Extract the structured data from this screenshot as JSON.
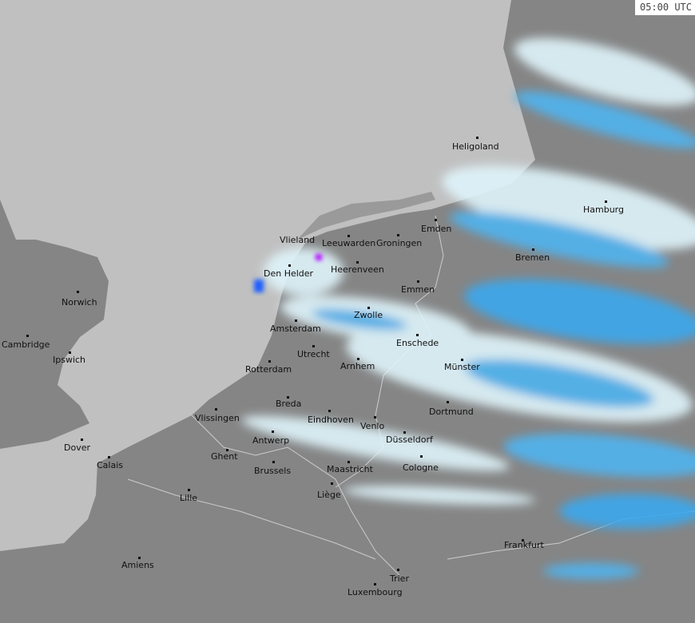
{
  "timestamp": "05:00 UTC",
  "colors": {
    "sea": "#c0c0c0",
    "land": "#858585",
    "light_precip": "#dff4fb",
    "moderate_precip": "#3aa8ee",
    "heavy_precip": "#1f5fff",
    "very_heavy_precip": "#b000ff"
  },
  "cities": [
    "Heligoland",
    "Hamburg",
    "Emden",
    "Bremen",
    "Vlieland",
    "Leeuwarden",
    "Groningen",
    "Den Helder",
    "Heerenveen",
    "Emmen",
    "Norwich",
    "Zwolle",
    "Amsterdam",
    "Enschede",
    "Cambridge",
    "Ipswich",
    "Utrecht",
    "Arnhem",
    "Münster",
    "Rotterdam",
    "Breda",
    "Dortmund",
    "Vlissingen",
    "Eindhoven",
    "Venlo",
    "Antwerp",
    "Düsseldorf",
    "Dover",
    "Ghent",
    "Calais",
    "Brussels",
    "Maastricht",
    "Cologne",
    "Liège",
    "Lille",
    "Frankfurt",
    "Amiens",
    "Trier",
    "Luxembourg"
  ]
}
